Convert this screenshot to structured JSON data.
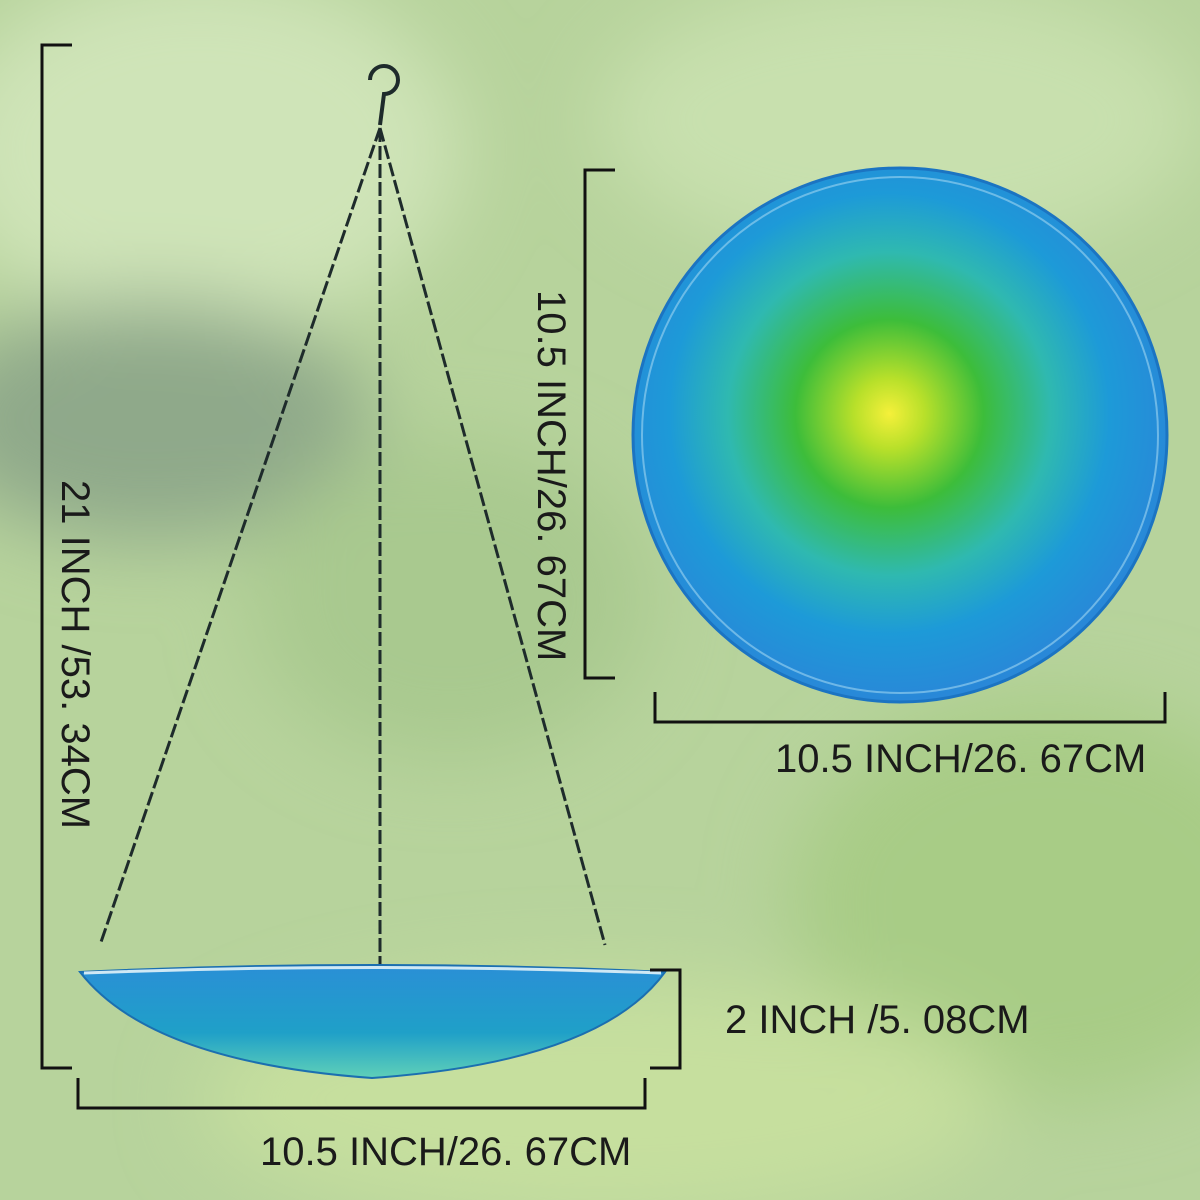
{
  "dimensions": {
    "total_height": "21 INCH /53. 34CM",
    "plate_diameter_vertical": "10.5 INCH/26. 67CM",
    "plate_diameter_horizontal": "10.5 INCH/26. 67CM",
    "bowl_depth": "2 INCH /5. 08CM",
    "bowl_width": "10.5 INCH/26. 67CM"
  }
}
